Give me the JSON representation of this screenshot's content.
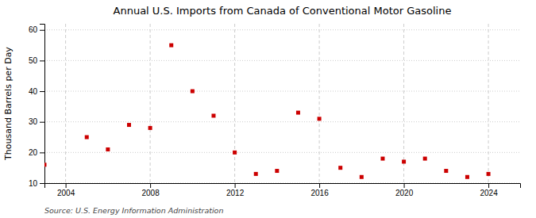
{
  "chart_data": {
    "type": "scatter",
    "title": "Annual U.S. Imports from Canada of Conventional Motor Gasoline",
    "ylabel": "Thousand Barrels per Day",
    "source": "Source: U.S. Energy Information Administration",
    "x": [
      2003,
      2005,
      2006,
      2007,
      2008,
      2009,
      2010,
      2011,
      2012,
      2013,
      2014,
      2015,
      2016,
      2017,
      2018,
      2019,
      2020,
      2021,
      2022,
      2023,
      2024
    ],
    "values": [
      16,
      25,
      21,
      29,
      28,
      55,
      40,
      32,
      20,
      13,
      14,
      33,
      31,
      15,
      12,
      18,
      17,
      18,
      14,
      12,
      13
    ],
    "color": "#cc0000",
    "marker": "square",
    "xlim": [
      2003.0,
      2025.5
    ],
    "ylim": [
      10,
      62
    ],
    "xticks": [
      2004,
      2008,
      2012,
      2016,
      2020,
      2024
    ],
    "yticks": [
      10,
      20,
      30,
      40,
      50,
      60
    ],
    "grid": true
  }
}
